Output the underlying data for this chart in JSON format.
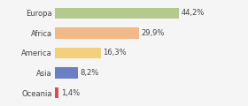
{
  "categories": [
    "Europa",
    "Africa",
    "America",
    "Asia",
    "Oceania"
  ],
  "values": [
    44.2,
    29.9,
    16.3,
    8.2,
    1.4
  ],
  "labels": [
    "44,2%",
    "29,9%",
    "16,3%",
    "8,2%",
    "1,4%"
  ],
  "bar_colors": [
    "#b5c98e",
    "#f0b987",
    "#f5d07a",
    "#6b7fc4",
    "#d94f4f"
  ],
  "background_color": "#f5f5f5",
  "label_fontsize": 6.0,
  "tick_fontsize": 6.0,
  "xlim": [
    0,
    58
  ]
}
